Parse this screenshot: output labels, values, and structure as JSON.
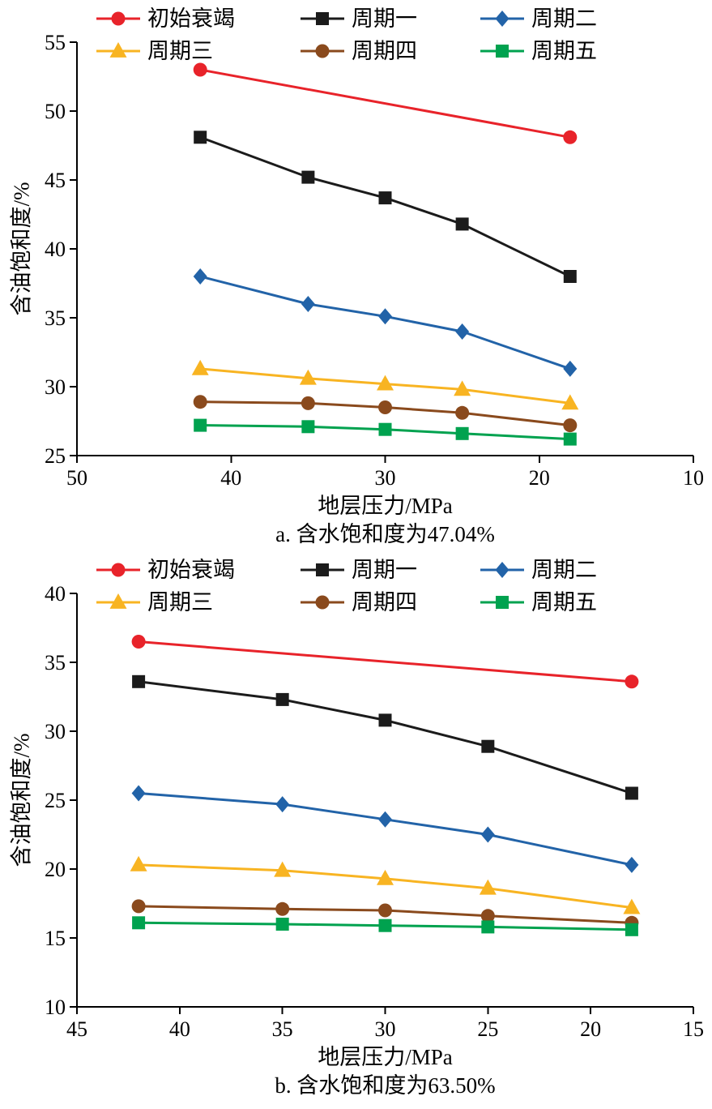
{
  "figure": {
    "background": "#ffffff",
    "axis_color": "#000000"
  },
  "chart_data": [
    {
      "type": "line",
      "subtitle": "a. 含水饱和度为47.04%",
      "xlabel": "地层压力/MPa",
      "ylabel": "含油饱和度/%",
      "x_axis_reversed": true,
      "xlim": [
        50,
        10
      ],
      "ylim": [
        25,
        55
      ],
      "x_ticks": [
        50,
        40,
        30,
        20,
        10
      ],
      "y_ticks": [
        25,
        30,
        35,
        40,
        45,
        50,
        55
      ],
      "grid": false,
      "legend_position": "top",
      "series": [
        {
          "name": "初始衰竭",
          "color": "#e8232a",
          "marker": "circle",
          "x": [
            42,
            18
          ],
          "y": [
            53.0,
            48.1
          ]
        },
        {
          "name": "周期一",
          "color": "#1b1b1b",
          "marker": "square",
          "x": [
            42,
            35,
            30,
            25,
            18
          ],
          "y": [
            48.1,
            45.2,
            43.7,
            41.8,
            38.0
          ]
        },
        {
          "name": "周期二",
          "color": "#2263a8",
          "marker": "diamond",
          "x": [
            42,
            35,
            30,
            25,
            18
          ],
          "y": [
            38.0,
            36.0,
            35.1,
            34.0,
            31.3
          ]
        },
        {
          "name": "周期三",
          "color": "#f8b422",
          "marker": "triangle",
          "x": [
            42,
            35,
            30,
            25,
            18
          ],
          "y": [
            31.3,
            30.6,
            30.2,
            29.8,
            28.8
          ]
        },
        {
          "name": "周期四",
          "color": "#8a4a1d",
          "marker": "circle",
          "x": [
            42,
            35,
            30,
            25,
            18
          ],
          "y": [
            28.9,
            28.8,
            28.5,
            28.1,
            27.2
          ]
        },
        {
          "name": "周期五",
          "color": "#00a24f",
          "marker": "square",
          "x": [
            42,
            35,
            30,
            25,
            18
          ],
          "y": [
            27.2,
            27.1,
            26.9,
            26.6,
            26.2
          ]
        }
      ]
    },
    {
      "type": "line",
      "subtitle": "b. 含水饱和度为63.50%",
      "xlabel": "地层压力/MPa",
      "ylabel": "含油饱和度/%",
      "x_axis_reversed": true,
      "xlim": [
        45,
        15
      ],
      "ylim": [
        10,
        40
      ],
      "x_ticks": [
        45,
        40,
        35,
        30,
        25,
        20,
        15
      ],
      "y_ticks": [
        10,
        15,
        20,
        25,
        30,
        35,
        40
      ],
      "grid": false,
      "legend_position": "top",
      "series": [
        {
          "name": "初始衰竭",
          "color": "#e8232a",
          "marker": "circle",
          "x": [
            42,
            18
          ],
          "y": [
            36.5,
            33.6
          ]
        },
        {
          "name": "周期一",
          "color": "#1b1b1b",
          "marker": "square",
          "x": [
            42,
            35,
            30,
            25,
            18
          ],
          "y": [
            33.6,
            32.3,
            30.8,
            28.9,
            25.5
          ]
        },
        {
          "name": "周期二",
          "color": "#2263a8",
          "marker": "diamond",
          "x": [
            42,
            35,
            30,
            25,
            18
          ],
          "y": [
            25.5,
            24.7,
            23.6,
            22.5,
            20.3
          ]
        },
        {
          "name": "周期三",
          "color": "#f8b422",
          "marker": "triangle",
          "x": [
            42,
            35,
            30,
            25,
            18
          ],
          "y": [
            20.3,
            19.9,
            19.3,
            18.6,
            17.2
          ]
        },
        {
          "name": "周期四",
          "color": "#8a4a1d",
          "marker": "circle",
          "x": [
            42,
            35,
            30,
            25,
            18
          ],
          "y": [
            17.3,
            17.1,
            17.0,
            16.6,
            16.1
          ]
        },
        {
          "name": "周期五",
          "color": "#00a24f",
          "marker": "square",
          "x": [
            42,
            35,
            30,
            25,
            18
          ],
          "y": [
            16.1,
            16.0,
            15.9,
            15.8,
            15.6
          ]
        }
      ]
    }
  ]
}
